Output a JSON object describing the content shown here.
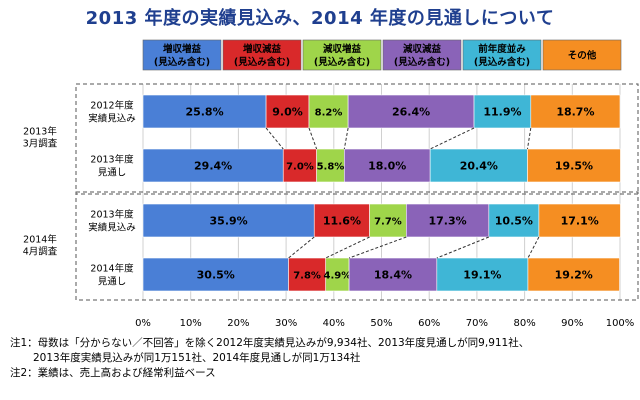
{
  "title": "2013 年度の実績見込み、2014 年度の見通しについて",
  "chart_data": {
    "type": "bar",
    "orientation": "horizontal",
    "stacked": true,
    "percent": true,
    "xlim": [
      0,
      100
    ],
    "x_ticks": [
      "0%",
      "10%",
      "20%",
      "30%",
      "40%",
      "50%",
      "60%",
      "70%",
      "80%",
      "90%",
      "100%"
    ],
    "grid": "vertical",
    "legend_position": "top",
    "series": [
      {
        "name": "増収増益\n(見込み含む)",
        "color": "#4a7fd6"
      },
      {
        "name": "増収減益\n(見込み含む)",
        "color": "#d9292a"
      },
      {
        "name": "減収増益\n(見込み含む)",
        "color": "#9fd54a"
      },
      {
        "name": "減収減益\n(見込み含む)",
        "color": "#8a63b8"
      },
      {
        "name": "前年度並み\n(見込み含む)",
        "color": "#3fb6d6"
      },
      {
        "name": "その他",
        "color": "#f58e22"
      }
    ],
    "groups": [
      {
        "label": "2013年\n3月調査",
        "rows": [
          {
            "label": "2012年度\n実績見込み",
            "values": [
              25.8,
              9.0,
              8.2,
              26.4,
              11.9,
              18.7
            ],
            "value_labels": [
              "25.8%",
              "9.0%",
              "8.2%",
              "26.4%",
              "11.9%",
              "18.7%"
            ]
          },
          {
            "label": "2013年度\n見通し",
            "values": [
              29.4,
              7.0,
              5.8,
              18.0,
              20.4,
              19.5
            ],
            "value_labels": [
              "29.4%",
              "7.0%",
              "5.8%",
              "18.0%",
              "20.4%",
              "19.5%"
            ]
          }
        ]
      },
      {
        "label": "2014年\n4月調査",
        "rows": [
          {
            "label": "2013年度\n実績見込み",
            "values": [
              35.9,
              11.6,
              7.7,
              17.3,
              10.5,
              17.1
            ],
            "value_labels": [
              "35.9%",
              "11.6%",
              "7.7%",
              "17.3%",
              "10.5%",
              "17.1%"
            ]
          },
          {
            "label": "2014年度\n見通し",
            "values": [
              30.5,
              7.8,
              4.9,
              18.4,
              19.1,
              19.2
            ],
            "value_labels": [
              "30.5%",
              "7.8%",
              "4.9%",
              "18.4%",
              "19.1%",
              "19.2%"
            ]
          }
        ]
      }
    ]
  },
  "notes": [
    "注1：母数は「分からない／不回答」を除く2012年度実績見込みが9,934社、2013年度見通しが同9,911社、",
    "2013年度実績見込みが同1万151社、2014年度見通しが同1万134社",
    "注2：業績は、売上高および経常利益ベース"
  ]
}
